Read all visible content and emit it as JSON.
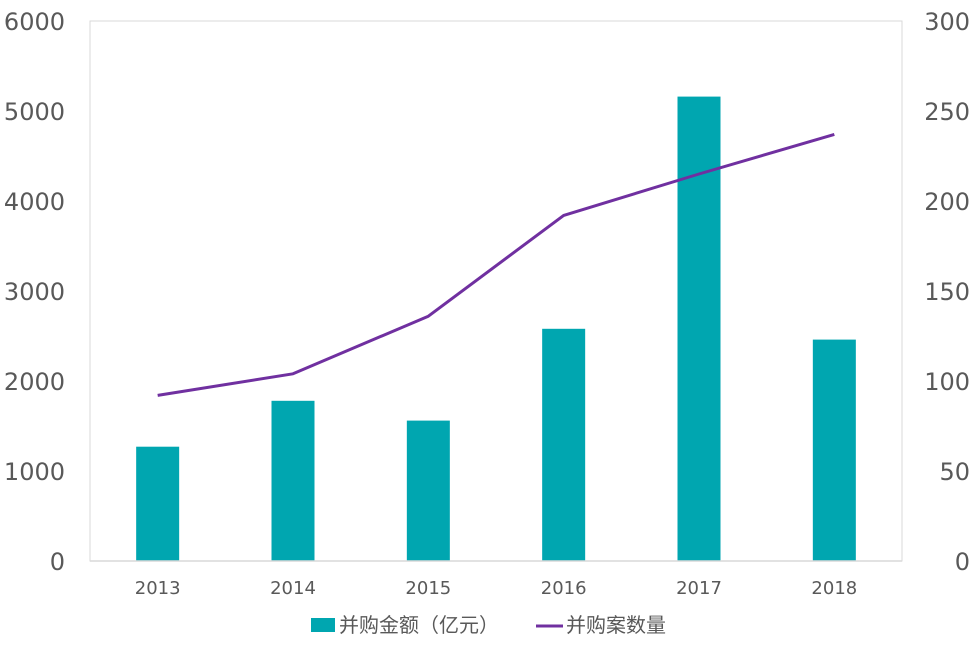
{
  "chart_data": {
    "type": "bar",
    "categories": [
      "2013",
      "2014",
      "2015",
      "2016",
      "2017",
      "2018"
    ],
    "series": [
      {
        "name": "并购金额（亿元）",
        "kind": "bar",
        "axis": "left",
        "values": [
          1270,
          1780,
          1560,
          2580,
          5160,
          2460
        ]
      },
      {
        "name": "并购案数量",
        "kind": "line",
        "axis": "right",
        "values": [
          92,
          104,
          136,
          192,
          215,
          237
        ]
      }
    ],
    "y_left": {
      "min": 0,
      "max": 6000,
      "ticks": [
        "0",
        "1000",
        "2000",
        "3000",
        "4000",
        "5000",
        "6000"
      ]
    },
    "y_right": {
      "min": 0,
      "max": 300,
      "ticks": [
        "0",
        "50",
        "100",
        "150",
        "200",
        "250",
        "300"
      ]
    },
    "grid": false,
    "legend_position": "bottom",
    "colors": {
      "bar": "#00A6B0",
      "line": "#7030A0",
      "axis": "#D9D9D9",
      "text": "#595959"
    }
  }
}
